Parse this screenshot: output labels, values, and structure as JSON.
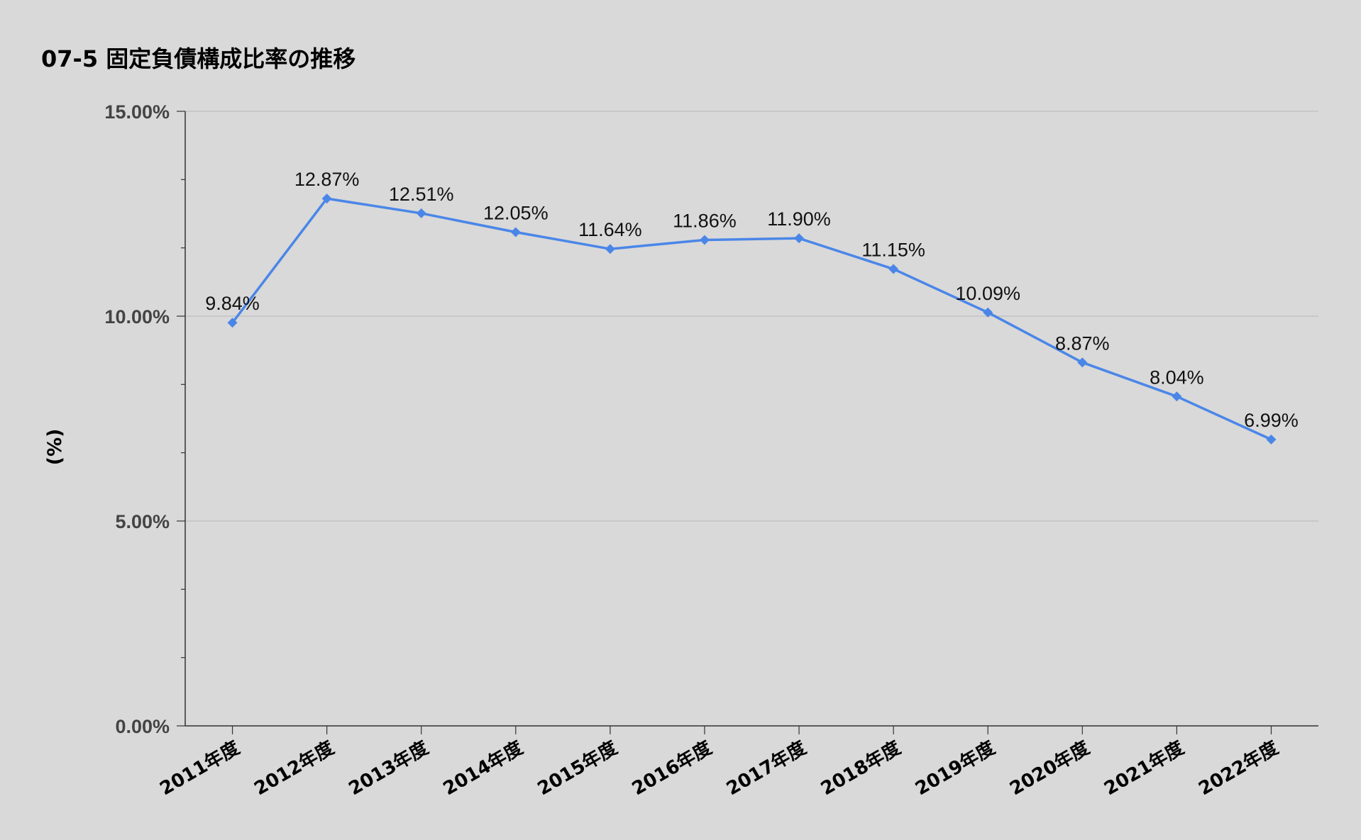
{
  "colors": {
    "background": "#d9d9d9",
    "series": "#4a86e8",
    "gridline": "#b7b7b7",
    "axis": "#333333"
  },
  "chart_data": {
    "type": "line",
    "title": "07-5 固定負債構成比率の推移",
    "xlabel": "",
    "ylabel": "(%)",
    "ylim": [
      0,
      15
    ],
    "yticks": [
      "0.00%",
      "5.00%",
      "10.00%",
      "15.00%"
    ],
    "ytick_values": [
      0,
      5,
      10,
      15
    ],
    "grid": true,
    "legend": "none",
    "marker": "diamond",
    "categories": [
      "2011年度",
      "2012年度",
      "2013年度",
      "2014年度",
      "2015年度",
      "2016年度",
      "2017年度",
      "2018年度",
      "2019年度",
      "2020年度",
      "2021年度",
      "2022年度"
    ],
    "series": [
      {
        "values": [
          9.84,
          12.87,
          12.51,
          12.05,
          11.64,
          11.86,
          11.9,
          11.15,
          10.09,
          8.87,
          8.04,
          6.99
        ],
        "data_labels": [
          "9.84%",
          "12.87%",
          "12.51%",
          "12.05%",
          "11.64%",
          "11.86%",
          "11.90%",
          "11.15%",
          "10.09%",
          "8.87%",
          "8.04%",
          "6.99%"
        ]
      }
    ]
  }
}
